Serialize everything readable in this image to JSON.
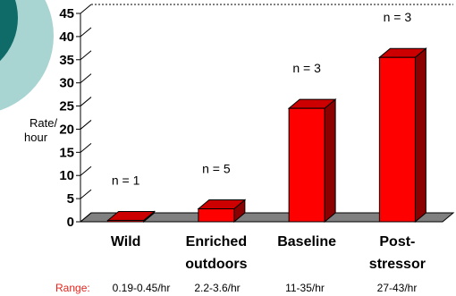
{
  "chart_data": {
    "type": "bar",
    "categories": [
      [
        "Wild"
      ],
      [
        "Enriched",
        "outdoors"
      ],
      [
        "Baseline"
      ],
      [
        "Post-",
        "stressor"
      ]
    ],
    "values": [
      0.3,
      2.8,
      24.5,
      35.5
    ],
    "sample_labels": [
      "n = 1",
      "n = 5",
      "n = 3",
      "n = 3"
    ],
    "ranges": [
      "0.19-0.45/hr",
      "2.2-3.6/hr",
      "11-35/hr",
      "27-43/hr"
    ],
    "range_prefix": "Range:",
    "ylabel": [
      "Rate/",
      "hour"
    ],
    "ylim": [
      0,
      45
    ],
    "yticks": [
      0,
      5,
      10,
      15,
      20,
      25,
      30,
      35,
      40,
      45
    ],
    "colors": {
      "bar_front": "#ff0000",
      "bar_side": "#8b0000",
      "bar_top": "#cc0000",
      "floor": "#808080",
      "decoration": "#a8d4d2",
      "decoration_inner": "#0f6b68",
      "range_key": "#e8231b"
    }
  }
}
